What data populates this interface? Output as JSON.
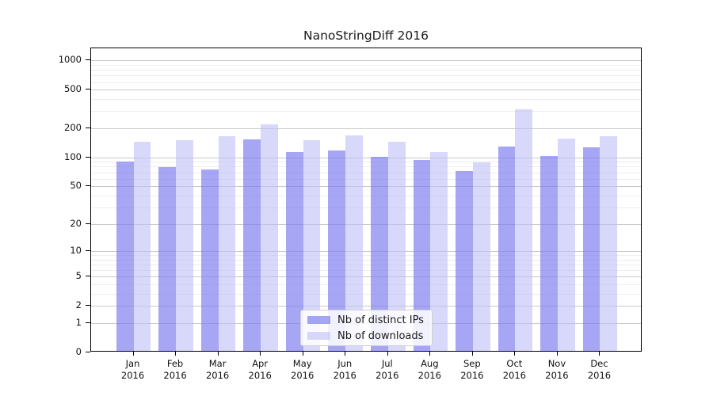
{
  "figure": {
    "background": "#ffffff"
  },
  "chart_data": {
    "type": "bar",
    "title": "NanoStringDiff 2016",
    "scale": "log1p",
    "xlabel": "",
    "ylabel": "",
    "months": [
      "Jan",
      "Feb",
      "Mar",
      "Apr",
      "May",
      "Jun",
      "Jul",
      "Aug",
      "Sep",
      "Oct",
      "Nov",
      "Dec"
    ],
    "year": "2016",
    "series": [
      {
        "name": "Nb of distinct IPs",
        "color": "#7878f0",
        "opacity": 0.66,
        "values": [
          87,
          77,
          72,
          148,
          110,
          113,
          98,
          90,
          69,
          125,
          100,
          122
        ]
      },
      {
        "name": "Nb of downloads",
        "color": "#bebef8",
        "opacity": 0.6,
        "values": [
          140,
          145,
          159,
          210,
          146,
          162,
          140,
          109,
          85,
          305,
          151,
          159
        ]
      }
    ],
    "y_ticks": [
      0,
      1,
      2,
      5,
      10,
      20,
      50,
      100,
      200,
      500,
      1000
    ],
    "ylim": [
      0,
      1332
    ],
    "grid": true,
    "legend_position": "lower center",
    "colors": {
      "grid_major": "#c9c9c9",
      "grid_minor": "#ededed",
      "spine": "#000000",
      "text": "#1a1a1a"
    }
  }
}
